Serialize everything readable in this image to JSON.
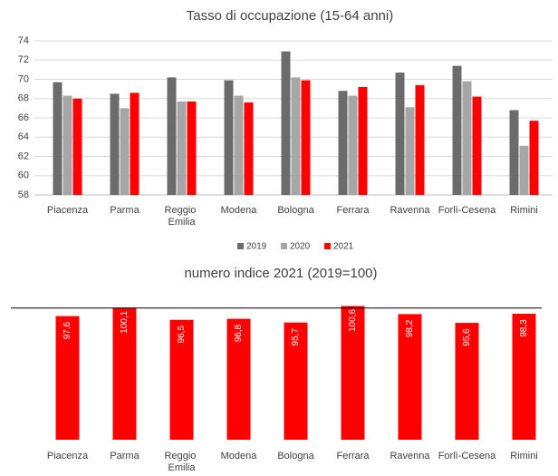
{
  "chart_data": [
    {
      "type": "grouped_bar",
      "title": "Tasso di occupazione (15-64 anni)",
      "categories": [
        "Piacenza",
        "Parma",
        "Reggio Emilia",
        "Modena",
        "Bologna",
        "Ferrara",
        "Ravenna",
        "Forlì-Cesena",
        "Rimini"
      ],
      "series": [
        {
          "name": "2019",
          "color": "#6b6b6b",
          "values": [
            69.7,
            68.5,
            70.2,
            69.9,
            72.9,
            68.8,
            70.7,
            71.4,
            66.8
          ]
        },
        {
          "name": "2020",
          "color": "#a6a6a6",
          "values": [
            68.3,
            67.0,
            67.7,
            68.3,
            70.2,
            68.3,
            67.1,
            69.8,
            63.1
          ]
        },
        {
          "name": "2021",
          "color": "#ff0000",
          "values": [
            68.0,
            68.6,
            67.7,
            67.6,
            69.9,
            69.2,
            69.4,
            68.2,
            65.7
          ]
        }
      ],
      "ylim": [
        58,
        74
      ],
      "yticks": [
        58,
        60,
        62,
        64,
        66,
        68,
        70,
        72,
        74
      ],
      "grid": true,
      "legend": "bottom"
    },
    {
      "type": "bar",
      "title": "numero indice 2021 (2019=100)",
      "categories": [
        "Piacenza",
        "Parma",
        "Reggio Emilia",
        "Modena",
        "Bologna",
        "Ferrara",
        "Ravenna",
        "Forlì-Cesena",
        "Rimini"
      ],
      "values": [
        97.6,
        100.1,
        96.5,
        96.8,
        95.7,
        100.6,
        98.2,
        95.6,
        98.3
      ],
      "value_labels": [
        "97,6",
        "100,1",
        "96,5",
        "96,8",
        "95,7",
        "100,6",
        "98,2",
        "95,6",
        "98,3"
      ],
      "color": "#ff0000",
      "ylim": [
        61,
        101
      ],
      "reference_line": 100
    }
  ]
}
